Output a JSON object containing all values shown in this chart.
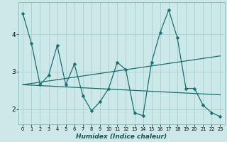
{
  "xlabel": "Humidex (Indice chaleur)",
  "bg_color": "#cce8e8",
  "line_color": "#1a7070",
  "grid_color": "#aad0d0",
  "xlim": [
    -0.5,
    23.5
  ],
  "ylim": [
    1.6,
    4.85
  ],
  "yticks": [
    2,
    3,
    4
  ],
  "xticks": [
    0,
    1,
    2,
    3,
    4,
    5,
    6,
    7,
    8,
    9,
    10,
    11,
    12,
    13,
    14,
    15,
    16,
    17,
    18,
    19,
    20,
    21,
    22,
    23
  ],
  "series_jagged": {
    "x": [
      0,
      1,
      2,
      3,
      4,
      5,
      6,
      7,
      8,
      9,
      10,
      11,
      12,
      13,
      14,
      15,
      16,
      17,
      18,
      19,
      20,
      21,
      22,
      23
    ],
    "y": [
      4.55,
      3.75,
      2.65,
      2.9,
      3.7,
      2.65,
      3.2,
      2.35,
      1.95,
      2.2,
      2.55,
      3.25,
      3.05,
      1.9,
      1.82,
      3.25,
      4.05,
      4.65,
      3.9,
      2.55,
      2.55,
      2.1,
      1.9,
      1.8
    ]
  },
  "series_flat": {
    "x": [
      0,
      23
    ],
    "y": [
      2.65,
      2.38
    ]
  },
  "series_rising": {
    "x": [
      0,
      23
    ],
    "y": [
      2.65,
      3.42
    ]
  }
}
